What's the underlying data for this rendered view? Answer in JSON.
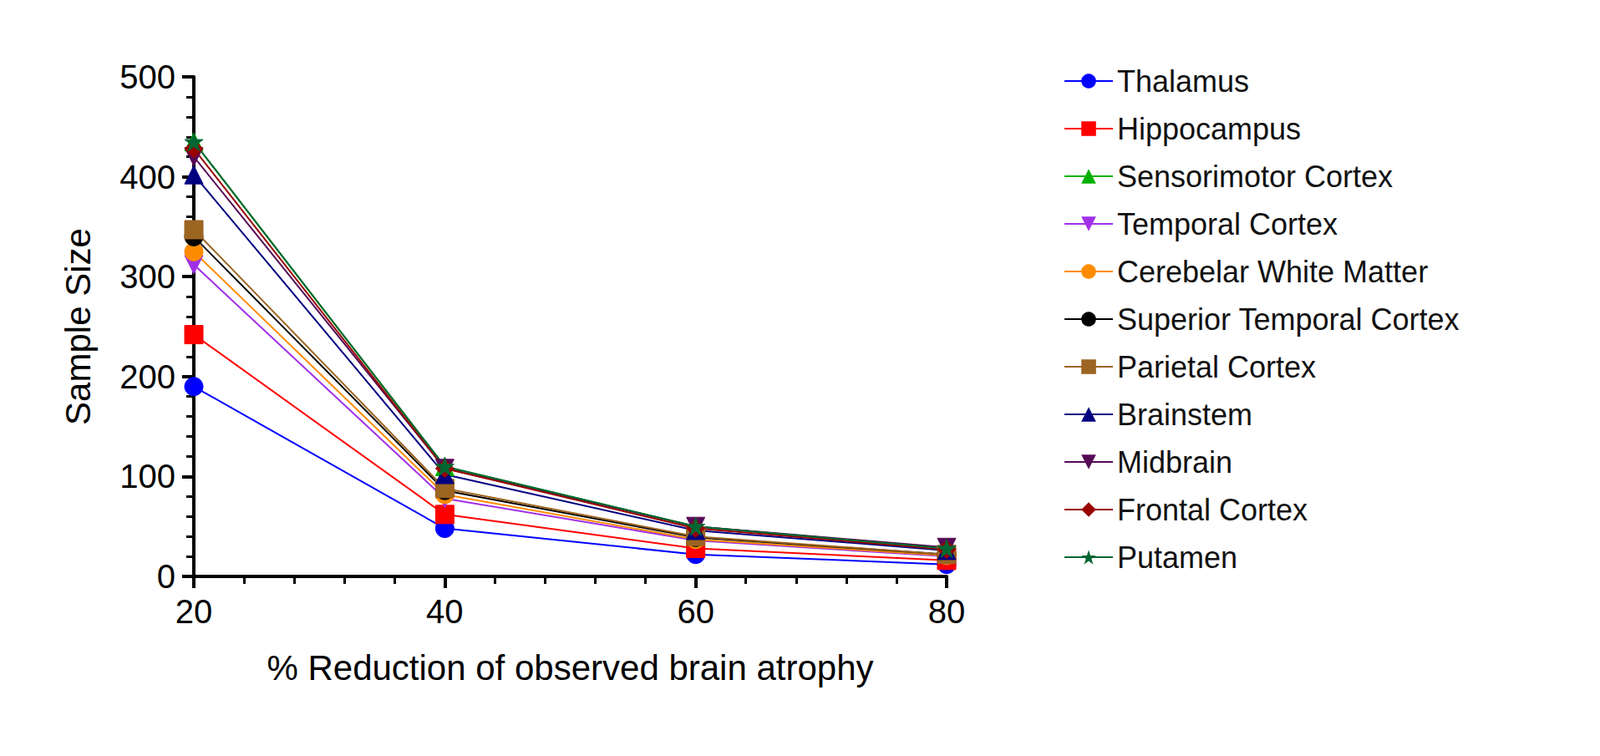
{
  "chart_data": {
    "type": "line",
    "x_label": "% Reduction of observed brain atrophy",
    "y_label": "Sample Size",
    "x": [
      20,
      40,
      60,
      80
    ],
    "xlim": [
      20,
      80
    ],
    "xticks": [
      20,
      40,
      60,
      80
    ],
    "ylim": [
      0,
      500
    ],
    "yticks": [
      0,
      100,
      200,
      300,
      400,
      500
    ],
    "grid": false,
    "legend": "right",
    "series": [
      {
        "name": "Thalamus",
        "color": "#0000ff",
        "marker": "circle",
        "values": [
          190,
          48,
          22,
          12
        ]
      },
      {
        "name": "Hippocampus",
        "color": "#ff0000",
        "marker": "square",
        "values": [
          242,
          62,
          28,
          16
        ]
      },
      {
        "name": "Sensorimotor Cortex",
        "color": "#00b000",
        "marker": "triangle",
        "values": [
          435,
          110,
          50,
          28
        ]
      },
      {
        "name": "Temporal Cortex",
        "color": "#a030e8",
        "marker": "triangle_down",
        "values": [
          312,
          78,
          36,
          20
        ]
      },
      {
        "name": "Cerebelar White Matter",
        "color": "#ff8c00",
        "marker": "circle",
        "values": [
          325,
          82,
          37,
          21
        ]
      },
      {
        "name": "Superior Temporal Cortex",
        "color": "#000000",
        "marker": "circle",
        "values": [
          340,
          86,
          39,
          22
        ]
      },
      {
        "name": "Parietal Cortex",
        "color": "#9c6522",
        "marker": "square",
        "values": [
          347,
          88,
          40,
          22
        ]
      },
      {
        "name": "Brainstem",
        "color": "#000080",
        "marker": "triangle",
        "values": [
          402,
          102,
          46,
          26
        ]
      },
      {
        "name": "Midbrain",
        "color": "#560a56",
        "marker": "triangle_down",
        "values": [
          420,
          108,
          50,
          29
        ]
      },
      {
        "name": "Frontal Cortex",
        "color": "#990000",
        "marker": "diamond",
        "values": [
          428,
          108,
          48,
          27
        ]
      },
      {
        "name": "Putamen",
        "color": "#006633",
        "marker": "star",
        "values": [
          435,
          110,
          50,
          28
        ]
      }
    ]
  }
}
